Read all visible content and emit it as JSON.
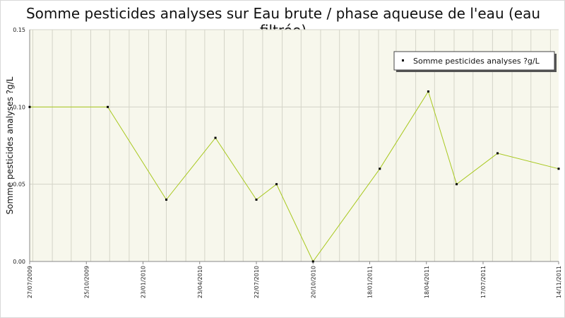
{
  "chart_data": {
    "type": "line",
    "title": "Somme pesticides analyses sur Eau brute / phase aqueuse de l'eau (eau filtrée)",
    "xlabel": "",
    "ylabel": "Somme pesticides analyses ?g/L",
    "ylim": [
      0,
      0.15
    ],
    "y_ticks": [
      "0.00",
      "0.05",
      "0.10",
      "0.15"
    ],
    "y_tick_values": [
      0,
      0.05,
      0.1,
      0.15
    ],
    "x_range": [
      "2009-07-27",
      "2011-11-14"
    ],
    "x_tick_labels": [
      "27/07/2009",
      "25/10/2009",
      "23/01/2010",
      "23/04/2010",
      "22/07/2010",
      "20/10/2010",
      "18/01/2011",
      "18/04/2011",
      "17/07/2011",
      "14/11/2011"
    ],
    "x_tick_dates": [
      "2009-07-27",
      "2009-10-25",
      "2010-01-23",
      "2010-04-23",
      "2010-07-22",
      "2010-10-20",
      "2011-01-18",
      "2011-04-18",
      "2011-07-17",
      "2011-11-14"
    ],
    "grid": true,
    "legend": "top-right",
    "colors": {
      "line": "#a8c81e",
      "marker": "#000000",
      "plot_bg": "#f7f7ec",
      "grid": "#d4d4c8",
      "axis": "#888888"
    },
    "series": [
      {
        "name": "Somme pesticides analyses ?g/L",
        "points": [
          {
            "x": "2009-07-27",
            "y": 0.1
          },
          {
            "x": "2009-11-28",
            "y": 0.1
          },
          {
            "x": "2010-03-01",
            "y": 0.04
          },
          {
            "x": "2010-05-18",
            "y": 0.08
          },
          {
            "x": "2010-07-22",
            "y": 0.04
          },
          {
            "x": "2010-08-23",
            "y": 0.05
          },
          {
            "x": "2010-10-20",
            "y": 0.0
          },
          {
            "x": "2011-02-03",
            "y": 0.06
          },
          {
            "x": "2011-04-21",
            "y": 0.11
          },
          {
            "x": "2011-06-05",
            "y": 0.05
          },
          {
            "x": "2011-08-09",
            "y": 0.07
          },
          {
            "x": "2011-11-14",
            "y": 0.06
          }
        ]
      }
    ]
  }
}
